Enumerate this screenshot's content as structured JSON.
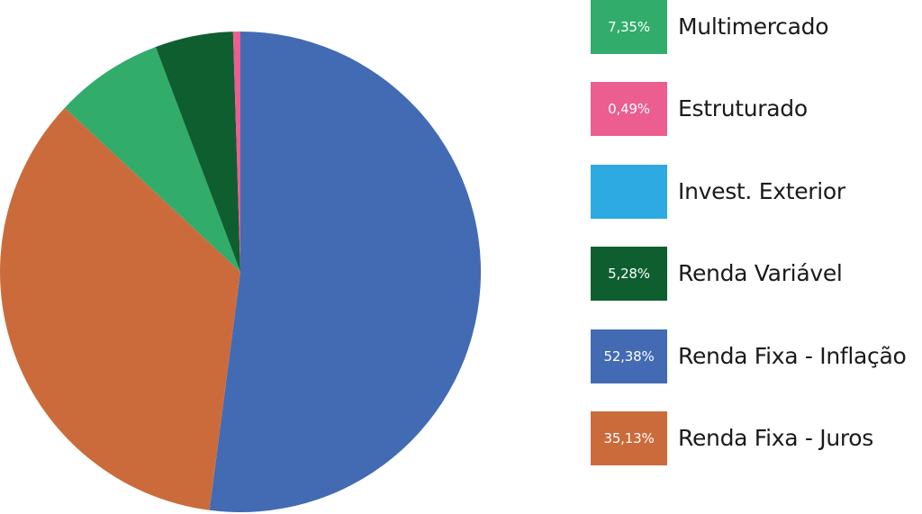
{
  "chart_data": {
    "type": "pie",
    "slices": [
      {
        "label": "Renda Fixa - Inflação",
        "value": 52.38,
        "value_label": "52,38%",
        "color": "#426bb3"
      },
      {
        "label": "Renda Fixa - Juros",
        "value": 35.13,
        "value_label": "35,13%",
        "color": "#cb6b3c"
      },
      {
        "label": "Multimercado",
        "value": 7.35,
        "value_label": "7,35%",
        "color": "#31ac6a"
      },
      {
        "label": "Renda Variável",
        "value": 5.28,
        "value_label": "5,28%",
        "color": "#0f5e30"
      },
      {
        "label": "Invest. Exterior",
        "value": 0,
        "value_label": "",
        "color": "#2eaae2"
      },
      {
        "label": "Estruturado",
        "value": 0.49,
        "value_label": "0,49%",
        "color": "#eb5e8f"
      }
    ],
    "legend": [
      {
        "label": "Multimercado",
        "value_label": "7,35%",
        "color": "#31ac6a"
      },
      {
        "label": "Estruturado",
        "value_label": "0,49%",
        "color": "#eb5e8f"
      },
      {
        "label": "Invest. Exterior",
        "value_label": "",
        "color": "#2eaae2"
      },
      {
        "label": "Renda Variável",
        "value_label": "5,28%",
        "color": "#0f5e30"
      },
      {
        "label": "Renda Fixa - Inflação",
        "value_label": "52,38%",
        "color": "#426bb3"
      },
      {
        "label": "Renda Fixa - Juros",
        "value_label": "35,13%",
        "color": "#cb6b3c"
      }
    ],
    "legend_placement": "right",
    "start_angle": "12 o'clock",
    "direction": "clockwise"
  }
}
